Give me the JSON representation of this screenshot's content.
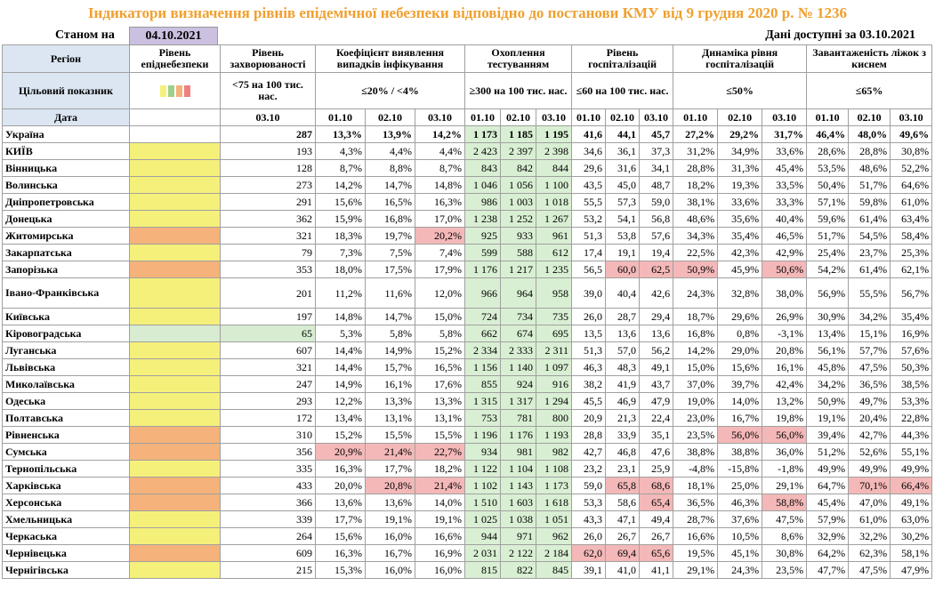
{
  "title": "Індикатори визначення рівнів епідемічної небезпеки відповідно до постанови КМУ від 9 грудня 2020 р. № 1236",
  "status": {
    "label": "Станом на",
    "date": "04.10.2021",
    "available_label": "Дані доступні за",
    "available_date": "03.10.2021"
  },
  "table": {
    "headers": [
      "Регіон",
      "Рівень епіднебезпеки",
      "Рівень захворюваності",
      "Коефіцієнт виявлення випадків інфікування",
      "Охоплення тестуванням",
      "Рівень госпіталізацій",
      "Динаміка рівня госпіталізацій",
      "Завантаженість ліжок з киснем"
    ],
    "target_label": "Цільовий показник",
    "targets": [
      "<75 на 100 тис. нас.",
      "≤20% / <4%",
      "≥300 на 100 тис. нас.",
      "≤60 на 100 тис. нас.",
      "≤50%",
      "≤65%"
    ],
    "date_label": "Дата",
    "dates": [
      "03.10",
      "01.10",
      "02.10",
      "03.10",
      "01.10",
      "02.10",
      "03.10",
      "01.10",
      "02.10",
      "03.10",
      "01.10",
      "02.10",
      "03.10",
      "01.10",
      "02.10",
      "03.10"
    ],
    "rows": [
      {
        "region": "Україна",
        "level": "#ffffff",
        "values": [
          "287",
          "13,3%",
          "13,9%",
          "14,2%",
          "1 173",
          "1 185",
          "1 195",
          "41,6",
          "44,1",
          "45,7",
          "27,2%",
          "29,2%",
          "31,7%",
          "46,4%",
          "48,0%",
          "49,6%"
        ]
      },
      {
        "region": "КИЇВ",
        "level": "#f5f07a",
        "values": [
          "193",
          "4,3%",
          "4,4%",
          "4,4%",
          "2 423",
          "2 397",
          "2 398",
          "34,6",
          "36,1",
          "37,3",
          "31,2%",
          "34,9%",
          "33,6%",
          "28,6%",
          "28,8%",
          "30,8%"
        ]
      },
      {
        "region": "Вінницька",
        "level": "#f5f07a",
        "values": [
          "128",
          "8,7%",
          "8,8%",
          "8,7%",
          "843",
          "842",
          "844",
          "29,6",
          "31,6",
          "34,1",
          "28,8%",
          "31,3%",
          "45,4%",
          "53,5%",
          "48,6%",
          "52,2%"
        ]
      },
      {
        "region": "Волинська",
        "level": "#f5f07a",
        "values": [
          "273",
          "14,2%",
          "14,7%",
          "14,8%",
          "1 046",
          "1 056",
          "1 100",
          "43,5",
          "45,0",
          "48,7",
          "18,2%",
          "19,3%",
          "33,5%",
          "50,4%",
          "51,7%",
          "64,6%"
        ]
      },
      {
        "region": "Дніпропетровська",
        "level": "#f5f07a",
        "values": [
          "291",
          "15,6%",
          "16,5%",
          "16,3%",
          "986",
          "1 003",
          "1 018",
          "55,5",
          "57,3",
          "59,0",
          "38,1%",
          "33,6%",
          "33,3%",
          "57,1%",
          "59,8%",
          "61,0%"
        ]
      },
      {
        "region": "Донецька",
        "level": "#f5f07a",
        "values": [
          "362",
          "15,9%",
          "16,8%",
          "17,0%",
          "1 238",
          "1 252",
          "1 267",
          "53,2",
          "54,1",
          "56,8",
          "48,6%",
          "35,6%",
          "40,4%",
          "59,6%",
          "61,4%",
          "63,4%"
        ]
      },
      {
        "region": "Житомирська",
        "level": "#f5b27a",
        "values": [
          "321",
          "18,3%",
          "19,7%",
          "20,2%",
          "925",
          "933",
          "961",
          "51,3",
          "53,8",
          "57,6",
          "34,3%",
          "35,4%",
          "46,5%",
          "51,7%",
          "54,5%",
          "58,4%"
        ],
        "red": [
          3
        ]
      },
      {
        "region": "Закарпатська",
        "level": "#f5f07a",
        "values": [
          "79",
          "7,3%",
          "7,5%",
          "7,4%",
          "599",
          "588",
          "612",
          "17,4",
          "19,1",
          "19,4",
          "22,5%",
          "42,3%",
          "42,9%",
          "25,4%",
          "23,7%",
          "25,3%"
        ]
      },
      {
        "region": "Запорізька",
        "level": "#f5b27a",
        "values": [
          "353",
          "18,0%",
          "17,5%",
          "17,9%",
          "1 176",
          "1 217",
          "1 235",
          "56,5",
          "60,0",
          "62,5",
          "50,9%",
          "45,9%",
          "50,6%",
          "54,2%",
          "61,4%",
          "62,1%"
        ],
        "red": [
          8,
          9,
          10,
          12
        ]
      },
      {
        "region": "Івано-Франківська",
        "level": "#f5f07a",
        "values": [
          "201",
          "11,2%",
          "11,6%",
          "12,0%",
          "966",
          "964",
          "958",
          "39,0",
          "40,4",
          "42,6",
          "24,3%",
          "32,8%",
          "38,0%",
          "56,9%",
          "55,5%",
          "56,7%"
        ]
      },
      {
        "region": "Київська",
        "level": "#f5f07a",
        "values": [
          "197",
          "14,8%",
          "14,7%",
          "15,0%",
          "724",
          "734",
          "735",
          "26,0",
          "28,7",
          "29,4",
          "18,7%",
          "29,6%",
          "26,9%",
          "30,9%",
          "34,2%",
          "35,4%"
        ]
      },
      {
        "region": "Кіровоградська",
        "level": "#d7ecd0",
        "values": [
          "65",
          "5,3%",
          "5,8%",
          "5,8%",
          "662",
          "674",
          "695",
          "13,5",
          "13,6",
          "13,6",
          "16,8%",
          "0,8%",
          "-3,1%",
          "13,4%",
          "15,1%",
          "16,9%"
        ],
        "green": [
          0
        ]
      },
      {
        "region": "Луганська",
        "level": "#f5f07a",
        "values": [
          "607",
          "14,4%",
          "14,9%",
          "15,2%",
          "2 334",
          "2 333",
          "2 311",
          "51,3",
          "57,0",
          "56,2",
          "14,2%",
          "29,0%",
          "20,8%",
          "56,1%",
          "57,7%",
          "57,6%"
        ]
      },
      {
        "region": "Львівська",
        "level": "#f5f07a",
        "values": [
          "321",
          "14,4%",
          "15,7%",
          "16,5%",
          "1 156",
          "1 140",
          "1 097",
          "46,3",
          "48,3",
          "49,1",
          "15,0%",
          "15,6%",
          "16,1%",
          "45,8%",
          "47,5%",
          "50,3%"
        ]
      },
      {
        "region": "Миколаївська",
        "level": "#f5f07a",
        "values": [
          "247",
          "14,9%",
          "16,1%",
          "17,6%",
          "855",
          "924",
          "916",
          "38,2",
          "41,9",
          "43,7",
          "37,0%",
          "39,7%",
          "42,4%",
          "34,2%",
          "36,5%",
          "38,5%"
        ]
      },
      {
        "region": "Одеська",
        "level": "#f5f07a",
        "values": [
          "293",
          "12,2%",
          "13,3%",
          "13,3%",
          "1 315",
          "1 317",
          "1 294",
          "45,5",
          "46,9",
          "47,9",
          "19,0%",
          "14,0%",
          "13,2%",
          "50,9%",
          "49,7%",
          "53,3%"
        ]
      },
      {
        "region": "Полтавська",
        "level": "#f5f07a",
        "values": [
          "172",
          "13,4%",
          "13,1%",
          "13,1%",
          "753",
          "781",
          "800",
          "20,9",
          "21,3",
          "22,4",
          "23,0%",
          "16,7%",
          "19,8%",
          "19,1%",
          "20,4%",
          "22,8%"
        ]
      },
      {
        "region": "Рівненська",
        "level": "#f5b27a",
        "values": [
          "310",
          "15,2%",
          "15,5%",
          "15,5%",
          "1 196",
          "1 176",
          "1 193",
          "28,8",
          "33,9",
          "35,1",
          "23,5%",
          "56,0%",
          "56,0%",
          "39,4%",
          "42,7%",
          "44,3%"
        ],
        "red": [
          11,
          12
        ]
      },
      {
        "region": "Сумська",
        "level": "#f5b27a",
        "values": [
          "356",
          "20,9%",
          "21,4%",
          "22,7%",
          "934",
          "981",
          "982",
          "42,7",
          "46,8",
          "47,6",
          "38,8%",
          "38,8%",
          "36,0%",
          "51,2%",
          "52,6%",
          "55,1%"
        ],
        "red": [
          1,
          2,
          3
        ]
      },
      {
        "region": "Тернопільська",
        "level": "#f5f07a",
        "values": [
          "335",
          "16,3%",
          "17,7%",
          "18,2%",
          "1 122",
          "1 104",
          "1 108",
          "23,2",
          "23,1",
          "25,9",
          "-4,8%",
          "-15,8%",
          "-1,8%",
          "49,9%",
          "49,9%",
          "49,9%"
        ]
      },
      {
        "region": "Харківська",
        "level": "#f5b27a",
        "values": [
          "433",
          "20,0%",
          "20,8%",
          "21,4%",
          "1 102",
          "1 143",
          "1 173",
          "59,0",
          "65,8",
          "68,6",
          "18,1%",
          "25,0%",
          "29,1%",
          "64,7%",
          "70,1%",
          "66,4%"
        ],
        "red": [
          2,
          3,
          8,
          9,
          14,
          15
        ]
      },
      {
        "region": "Херсонська",
        "level": "#f5b27a",
        "values": [
          "366",
          "13,6%",
          "13,6%",
          "14,0%",
          "1 510",
          "1 603",
          "1 618",
          "53,3",
          "58,6",
          "65,4",
          "36,5%",
          "46,3%",
          "58,8%",
          "45,4%",
          "47,0%",
          "49,1%"
        ],
        "red": [
          9,
          12
        ]
      },
      {
        "region": "Хмельницька",
        "level": "#f5f07a",
        "values": [
          "339",
          "17,7%",
          "19,1%",
          "19,1%",
          "1 025",
          "1 038",
          "1 051",
          "43,3",
          "47,1",
          "49,4",
          "28,7%",
          "37,6%",
          "47,5%",
          "57,9%",
          "61,0%",
          "63,0%"
        ]
      },
      {
        "region": "Черкаська",
        "level": "#f5f07a",
        "values": [
          "264",
          "15,6%",
          "16,0%",
          "16,6%",
          "944",
          "971",
          "962",
          "26,0",
          "26,7",
          "26,7",
          "16,6%",
          "10,5%",
          "8,6%",
          "32,9%",
          "32,2%",
          "30,2%"
        ]
      },
      {
        "region": "Чернівецька",
        "level": "#f5b27a",
        "values": [
          "609",
          "16,3%",
          "16,7%",
          "16,9%",
          "2 031",
          "2 122",
          "2 184",
          "62,0",
          "69,4",
          "65,6",
          "19,5%",
          "45,1%",
          "30,8%",
          "64,2%",
          "62,3%",
          "58,1%"
        ],
        "red": [
          7,
          8,
          9
        ]
      },
      {
        "region": "Чернігівська",
        "level": "#f5f07a",
        "values": [
          "215",
          "15,3%",
          "16,0%",
          "16,0%",
          "815",
          "822",
          "845",
          "39,1",
          "41,0",
          "41,1",
          "29,1%",
          "24,3%",
          "23,5%",
          "47,7%",
          "47,5%",
          "47,9%"
        ]
      }
    ]
  }
}
